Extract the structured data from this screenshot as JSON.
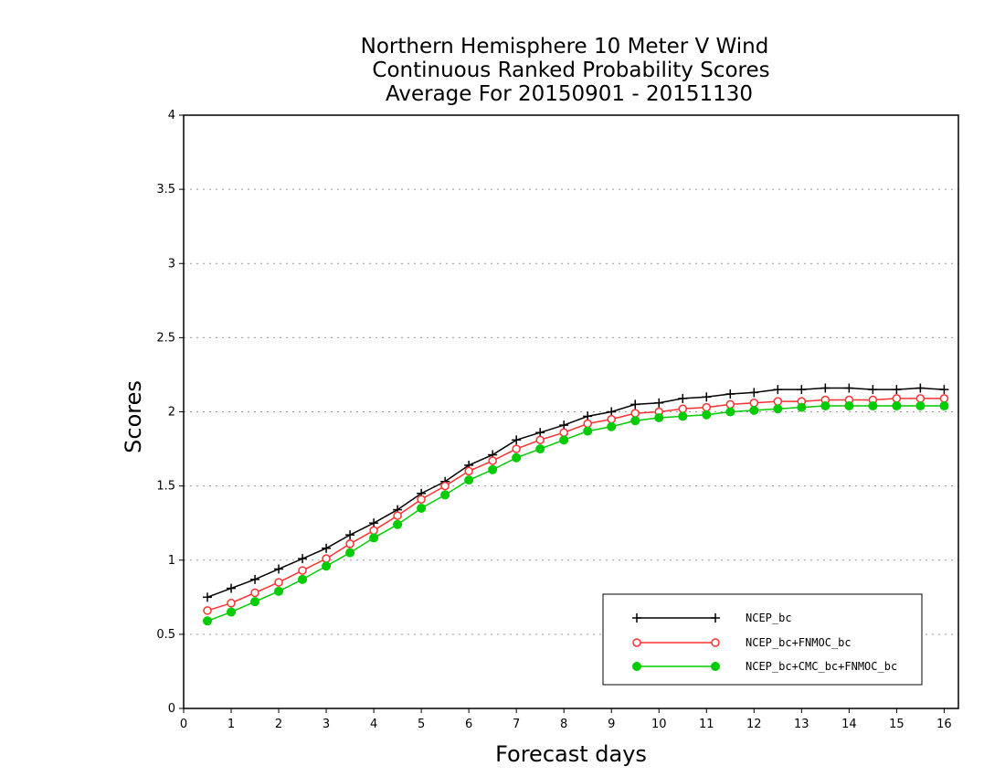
{
  "chart_data": {
    "type": "line",
    "title": [
      "Northern Hemisphere 10 Meter V Wind",
      "Continuous Ranked Probability Scores",
      "Average For 20150901 - 20151130"
    ],
    "xlabel": "Forecast days",
    "ylabel": "Scores",
    "xlim": [
      0,
      16.3
    ],
    "ylim": [
      0,
      4
    ],
    "xticks": [
      "0",
      "1",
      "2",
      "3",
      "4",
      "5",
      "6",
      "7",
      "8",
      "9",
      "10",
      "11",
      "12",
      "13",
      "14",
      "15",
      "16"
    ],
    "yticks": [
      "0",
      "0.5",
      "1",
      "1.5",
      "2",
      "2.5",
      "3",
      "3.5",
      "4"
    ],
    "grid": "horizontal dotted",
    "legend_position": "bottom-right",
    "x": [
      0.5,
      1,
      1.5,
      2,
      2.5,
      3,
      3.5,
      4,
      4.5,
      5,
      5.5,
      6,
      6.5,
      7,
      7.5,
      8,
      8.5,
      9,
      9.5,
      10,
      10.5,
      11,
      11.5,
      12,
      12.5,
      13,
      13.5,
      14,
      14.5,
      15,
      15.5,
      16
    ],
    "series": [
      {
        "name": "NCEP_bc",
        "color": "#000000",
        "marker": "plus",
        "values": [
          0.75,
          0.81,
          0.87,
          0.94,
          1.01,
          1.08,
          1.17,
          1.25,
          1.34,
          1.45,
          1.53,
          1.64,
          1.71,
          1.81,
          1.86,
          1.91,
          1.97,
          2.0,
          2.05,
          2.06,
          2.09,
          2.1,
          2.12,
          2.13,
          2.15,
          2.15,
          2.16,
          2.16,
          2.15,
          2.15,
          2.16,
          2.15
        ]
      },
      {
        "name": "NCEP_bc+FNMOC_bc",
        "color": "#ff3030",
        "marker": "open-circle",
        "values": [
          0.66,
          0.71,
          0.78,
          0.85,
          0.93,
          1.01,
          1.11,
          1.2,
          1.3,
          1.41,
          1.5,
          1.6,
          1.67,
          1.75,
          1.81,
          1.86,
          1.92,
          1.95,
          1.99,
          2.0,
          2.02,
          2.03,
          2.05,
          2.06,
          2.07,
          2.07,
          2.08,
          2.08,
          2.08,
          2.09,
          2.09,
          2.09
        ]
      },
      {
        "name": "NCEP_bc+CMC_bc+FNMOC_bc",
        "color": "#00cc00",
        "marker": "filled-circle",
        "values": [
          0.59,
          0.65,
          0.72,
          0.79,
          0.87,
          0.96,
          1.05,
          1.15,
          1.24,
          1.35,
          1.44,
          1.54,
          1.61,
          1.69,
          1.75,
          1.81,
          1.87,
          1.9,
          1.94,
          1.96,
          1.97,
          1.98,
          2.0,
          2.01,
          2.02,
          2.03,
          2.04,
          2.04,
          2.04,
          2.04,
          2.04,
          2.04
        ]
      }
    ]
  }
}
